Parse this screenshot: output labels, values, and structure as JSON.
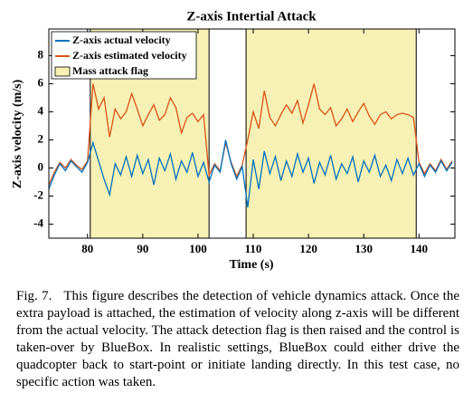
{
  "chart_data": {
    "type": "line",
    "title": "Z-axis Intertial Attack",
    "xlabel": "Time (s)",
    "ylabel": "Z-axis velocity (m/s)",
    "x": [
      73,
      74,
      75,
      76,
      77,
      78,
      79,
      80,
      81,
      82,
      83,
      84,
      85,
      86,
      87,
      88,
      89,
      90,
      91,
      92,
      93,
      94,
      95,
      96,
      97,
      98,
      99,
      100,
      101,
      102,
      103,
      104,
      105,
      106,
      107,
      108,
      109,
      110,
      111,
      112,
      113,
      114,
      115,
      116,
      117,
      118,
      119,
      120,
      121,
      122,
      123,
      124,
      125,
      126,
      127,
      128,
      129,
      130,
      131,
      132,
      133,
      134,
      135,
      136,
      137,
      138,
      139,
      140,
      141,
      142,
      143,
      144,
      145,
      146
    ],
    "series": [
      {
        "name": "Z-axis actual velocity",
        "color": "#0072bd",
        "values": [
          -1.5,
          -0.5,
          0.3,
          -0.2,
          0.5,
          0.1,
          -0.3,
          0.4,
          1.8,
          0.5,
          -0.8,
          -1.9,
          0.3,
          -0.5,
          0.8,
          -0.6,
          0.9,
          -0.4,
          0.6,
          -1.2,
          0.7,
          -0.2,
          1.0,
          -0.8,
          0.5,
          -0.3,
          1.1,
          -0.6,
          0.4,
          -1.0,
          0.2,
          -0.3,
          2.0,
          0.3,
          -0.8,
          0.1,
          -2.8,
          0.6,
          -1.5,
          1.2,
          -0.4,
          0.8,
          -0.9,
          0.5,
          -0.6,
          1.0,
          -0.3,
          0.7,
          -1.1,
          0.4,
          -0.5,
          0.9,
          -0.8,
          0.3,
          -0.4,
          0.8,
          -1.0,
          0.5,
          -0.3,
          0.9,
          -0.6,
          0.2,
          -0.9,
          0.6,
          -0.4,
          0.7,
          -0.5,
          0.3,
          -0.6,
          0.2,
          -0.3,
          0.5,
          -0.2,
          0.4
        ]
      },
      {
        "name": "Z-axis estimated velocity",
        "color": "#d95319",
        "values": [
          -1.2,
          -0.3,
          0.4,
          0.0,
          0.6,
          0.2,
          -0.1,
          0.5,
          6.0,
          4.2,
          5.0,
          2.2,
          4.2,
          3.5,
          4.0,
          5.3,
          4.2,
          3.0,
          3.8,
          4.5,
          3.4,
          3.8,
          5.0,
          4.3,
          2.5,
          3.6,
          3.9,
          3.3,
          3.8,
          -0.5,
          0.3,
          -0.2,
          1.8,
          0.4,
          -0.6,
          0.2,
          2.0,
          4.0,
          2.8,
          5.5,
          3.6,
          3.0,
          3.8,
          4.5,
          3.9,
          4.8,
          3.2,
          4.5,
          6.0,
          4.2,
          3.8,
          4.3,
          3.0,
          3.5,
          4.2,
          3.3,
          4.0,
          4.6,
          3.7,
          3.1,
          3.8,
          4.0,
          3.5,
          3.8,
          3.9,
          3.8,
          3.6,
          0.4,
          -0.4,
          0.3,
          -0.2,
          0.6,
          -0.1,
          0.5
        ]
      }
    ],
    "flag": {
      "name": "Mass attack flag",
      "color": "#f7f1b5",
      "intervals": [
        [
          80.5,
          102
        ],
        [
          108.7,
          139.5
        ]
      ]
    },
    "xlim": [
      73,
      146.5
    ],
    "ylim": [
      -5,
      9.9
    ],
    "xticks": [
      80,
      90,
      100,
      110,
      120,
      130,
      140
    ],
    "yticks": [
      -4,
      -2,
      0,
      2,
      4,
      6,
      8
    ],
    "legend": "upper left"
  },
  "caption": {
    "label": "Fig. 7.",
    "text": "This figure describes the detection of vehicle dynamics attack. Once the extra payload is attached, the estimation of velocity along z-axis will be different from the actual velocity. The attack detection flag is then raised and the control is taken-over by BlueBox. In realistic settings, BlueBox could either drive the quadcopter back to start-point or initiate landing directly. In this test case, no specific action was taken."
  }
}
